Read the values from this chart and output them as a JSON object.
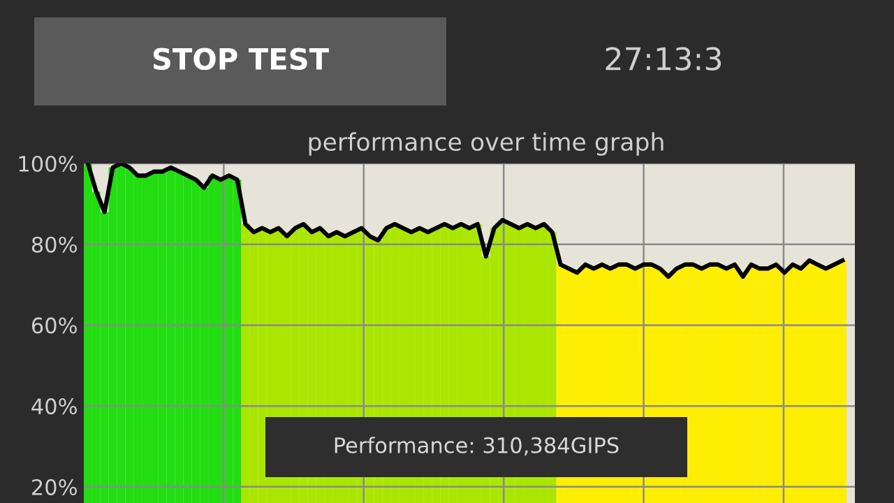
{
  "chart_data": {
    "type": "bar",
    "title": "performance over time graph",
    "categories": [
      null,
      null,
      null,
      null,
      null,
      null,
      null,
      null,
      null,
      null,
      null,
      null,
      null,
      null,
      null,
      null,
      null,
      null,
      null,
      null,
      null,
      null,
      null,
      null,
      null,
      null,
      null,
      null,
      null,
      null,
      null,
      null,
      null,
      null,
      null,
      null,
      null,
      null,
      null,
      null,
      null,
      null,
      null,
      null,
      null,
      null,
      null,
      null,
      null,
      null,
      null,
      null,
      null,
      null,
      null,
      null,
      null,
      null,
      null,
      null,
      null,
      null,
      null,
      null,
      null,
      null,
      null,
      null,
      null,
      null,
      null,
      null,
      null,
      null,
      null,
      null,
      null,
      null,
      null,
      null,
      null,
      null,
      null,
      null,
      null,
      null,
      null,
      null,
      null,
      null,
      null,
      null
    ],
    "series": [
      {
        "colors": [
          "#22dd11",
          "#22dd11",
          "#22dd11",
          "#22dd11",
          "#22dd11",
          "#22dd11",
          "#22dd11",
          "#22dd11",
          "#22dd11",
          "#22dd11",
          "#22dd11",
          "#22dd11",
          "#22dd11",
          "#22dd11",
          "#22dd11",
          "#22dd11",
          "#22dd11",
          "#22dd11",
          "#22dd11",
          "#aae600",
          "#aae600",
          "#aae600",
          "#aae600",
          "#aae600",
          "#aae600",
          "#aae600",
          "#aae600",
          "#aae600",
          "#aae600",
          "#aae600",
          "#aae600",
          "#aae600",
          "#aae600",
          "#aae600",
          "#aae600",
          "#aae600",
          "#aae600",
          "#aae600",
          "#aae600",
          "#aae600",
          "#aae600",
          "#aae600",
          "#aae600",
          "#aae600",
          "#aae600",
          "#aae600",
          "#aae600",
          "#aae600",
          "#aae600",
          "#aae600",
          "#aae600",
          "#aae600",
          "#aae600",
          "#aae600",
          "#aae600",
          "#aae600",
          "#aae600",
          "#ffee00",
          "#ffee00",
          "#ffee00",
          "#ffee00",
          "#ffee00",
          "#ffee00",
          "#ffee00",
          "#ffee00",
          "#ffee00",
          "#ffee00",
          "#ffee00",
          "#ffee00",
          "#ffee00",
          "#ffee00",
          "#ffee00",
          "#ffee00",
          "#ffee00",
          "#ffee00",
          "#ffee00",
          "#ffee00",
          "#ffee00",
          "#ffee00",
          "#ffee00",
          "#ffee00",
          "#ffee00",
          "#ffee00",
          "#ffee00",
          "#ffee00",
          "#ffee00",
          "#ffee00",
          "#ffee00",
          "#ffee00",
          "#ffee00",
          "#ffee00",
          "#ffee00"
        ],
        "values": [
          100,
          93,
          88,
          99,
          100,
          99,
          97,
          97,
          98,
          98,
          99,
          98,
          97,
          96,
          94,
          97,
          96,
          97,
          96,
          85,
          83,
          84,
          83,
          84,
          82,
          84,
          85,
          83,
          84,
          82,
          83,
          82,
          83,
          84,
          82,
          81,
          84,
          85,
          84,
          83,
          84,
          83,
          84,
          85,
          84,
          85,
          84,
          85,
          77,
          84,
          86,
          85,
          84,
          85,
          84,
          85,
          83,
          75,
          74,
          73,
          75,
          74,
          75,
          74,
          75,
          75,
          74,
          75,
          75,
          74,
          72,
          74,
          75,
          75,
          74,
          75,
          75,
          74,
          75,
          72,
          75,
          74,
          74,
          75,
          73,
          75,
          74,
          76,
          75,
          74,
          75,
          76
        ]
      },
      {
        "type": "line",
        "color": "#000000",
        "values": [
          100,
          93,
          88,
          99,
          100,
          99,
          97,
          97,
          98,
          98,
          99,
          98,
          97,
          96,
          94,
          97,
          96,
          97,
          96,
          85,
          83,
          84,
          83,
          84,
          82,
          84,
          85,
          83,
          84,
          82,
          83,
          82,
          83,
          84,
          82,
          81,
          84,
          85,
          84,
          83,
          84,
          83,
          84,
          85,
          84,
          85,
          84,
          85,
          77,
          84,
          86,
          85,
          84,
          85,
          84,
          85,
          83,
          75,
          74,
          73,
          75,
          74,
          75,
          74,
          75,
          75,
          74,
          75,
          75,
          74,
          72,
          74,
          75,
          75,
          74,
          75,
          75,
          74,
          75,
          72,
          75,
          74,
          74,
          75,
          73,
          75,
          74,
          76,
          75,
          74,
          75,
          76
        ]
      }
    ],
    "ylim": [
      16,
      100
    ],
    "yticks": [
      {
        "value": 20,
        "label": "20%"
      },
      {
        "value": 40,
        "label": "40%"
      },
      {
        "value": 60,
        "label": "60%"
      },
      {
        "value": 80,
        "label": "80%"
      },
      {
        "value": 100,
        "label": "100%"
      }
    ],
    "tick_labels": "y",
    "grid": true,
    "annotations": [
      "STOP TEST",
      "27:13:3",
      "Performance: 310,384GIPS"
    ]
  }
}
